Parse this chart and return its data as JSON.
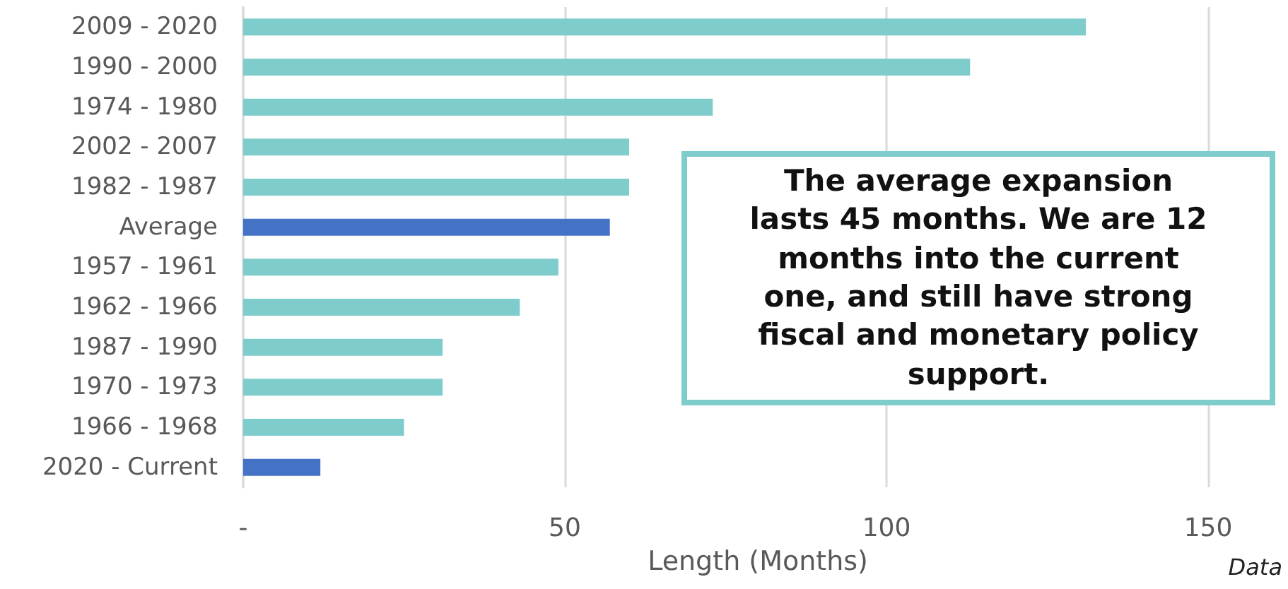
{
  "chart_data": {
    "type": "bar",
    "orientation": "horizontal",
    "xlabel": "Length (Months)",
    "categories": [
      "2009 - 2020",
      "1990 - 2000",
      "1974 - 1980",
      "2002 - 2007",
      "1982 - 1987",
      "Average",
      "1957 - 1961",
      "1962 - 1966",
      "1987 - 1990",
      "1970 - 1973",
      "1966 - 1968",
      "2020 - Current"
    ],
    "values": [
      131,
      113,
      73,
      60,
      60,
      57,
      49,
      43,
      31,
      31,
      25,
      12
    ],
    "colors": [
      "#7fcccc",
      "#7fcccc",
      "#7fcccc",
      "#7fcccc",
      "#7fcccc",
      "#4472c4",
      "#7fcccc",
      "#7fcccc",
      "#7fcccc",
      "#7fcccc",
      "#7fcccc",
      "#4472c4"
    ],
    "xlim": [
      0,
      160
    ],
    "xticks": [
      {
        "value": 0,
        "label": "-"
      },
      50,
      100,
      150
    ],
    "grid": "x",
    "annotations": [
      "The average expansion lasts 45 months. We are 12 months into the current one, and still have strong fiscal and monetary policy support.",
      "Data"
    ]
  }
}
